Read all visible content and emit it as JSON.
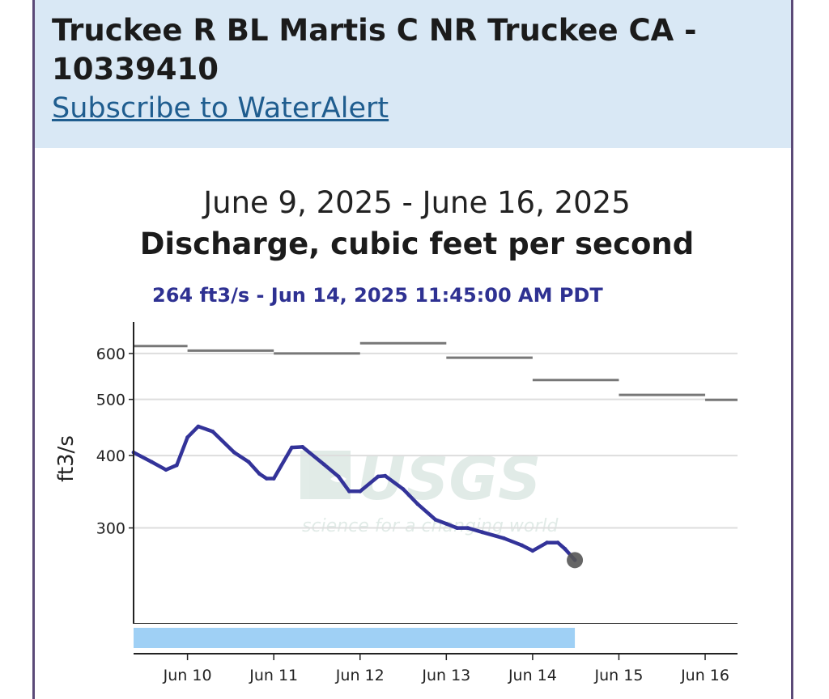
{
  "header": {
    "site_title": "Truckee R BL Martis C NR Truckee CA - 10339410",
    "subscribe_link": "Subscribe to WaterAlert"
  },
  "watermark": {
    "logo": "USGS",
    "tagline": "science for a changing world"
  },
  "colors": {
    "header_bg": "#d9e8f5",
    "series": "#333399",
    "median": "#777777",
    "brush": "#9fd0f5",
    "tooltip": "#2e3192",
    "link": "#1f5d8f"
  },
  "chart_data": {
    "type": "line",
    "date_range": "June 9, 2025 - June 16, 2025",
    "title": "Discharge, cubic feet per second",
    "tooltip": "264 ft3/s - Jun 14, 2025 11:45:00 AM PDT",
    "ylabel": "ft3/s",
    "yscale": "log",
    "ylim": [
      205,
      680
    ],
    "yticks": [
      300,
      400,
      500,
      600
    ],
    "xlim": [
      "2025-06-09T09:00",
      "2025-06-16T09:00"
    ],
    "xticks": [
      {
        "t": "2025-06-10T00:00",
        "label": "Jun 10"
      },
      {
        "t": "2025-06-11T00:00",
        "label": "Jun 11"
      },
      {
        "t": "2025-06-12T00:00",
        "label": "Jun 12"
      },
      {
        "t": "2025-06-13T00:00",
        "label": "Jun 13"
      },
      {
        "t": "2025-06-14T00:00",
        "label": "Jun 14"
      },
      {
        "t": "2025-06-15T00:00",
        "label": "Jun 15"
      },
      {
        "t": "2025-06-16T00:00",
        "label": "Jun 16"
      }
    ],
    "grid": "horizontal",
    "series": [
      {
        "kind": "discharge",
        "points": [
          [
            "2025-06-09T09:00",
            405
          ],
          [
            "2025-06-09T14:00",
            390
          ],
          [
            "2025-06-09T18:00",
            378
          ],
          [
            "2025-06-09T21:00",
            385
          ],
          [
            "2025-06-10T00:00",
            430
          ],
          [
            "2025-06-10T03:00",
            449
          ],
          [
            "2025-06-10T07:00",
            440
          ],
          [
            "2025-06-10T13:00",
            405
          ],
          [
            "2025-06-10T17:00",
            390
          ],
          [
            "2025-06-10T20:00",
            372
          ],
          [
            "2025-06-10T22:00",
            365
          ],
          [
            "2025-06-11T00:00",
            365
          ],
          [
            "2025-06-11T05:00",
            413
          ],
          [
            "2025-06-11T08:00",
            414
          ],
          [
            "2025-06-11T14:00",
            386
          ],
          [
            "2025-06-11T18:00",
            368
          ],
          [
            "2025-06-11T21:00",
            347
          ],
          [
            "2025-06-12T00:00",
            347
          ],
          [
            "2025-06-12T05:00",
            368
          ],
          [
            "2025-06-12T07:00",
            369
          ],
          [
            "2025-06-12T12:00",
            350
          ],
          [
            "2025-06-12T16:00",
            330
          ],
          [
            "2025-06-12T21:00",
            310
          ],
          [
            "2025-06-13T00:00",
            305
          ],
          [
            "2025-06-13T03:00",
            300
          ],
          [
            "2025-06-13T06:00",
            300
          ],
          [
            "2025-06-13T10:00",
            295
          ],
          [
            "2025-06-13T16:00",
            288
          ],
          [
            "2025-06-13T21:00",
            280
          ],
          [
            "2025-06-14T00:00",
            274
          ],
          [
            "2025-06-14T04:00",
            283
          ],
          [
            "2025-06-14T07:00",
            283
          ],
          [
            "2025-06-14T09:00",
            276
          ],
          [
            "2025-06-14T11:45",
            264
          ]
        ]
      },
      {
        "kind": "median",
        "steps": [
          {
            "from": "2025-06-09T09:00",
            "to": "2025-06-10T00:00",
            "value": 618
          },
          {
            "from": "2025-06-10T00:00",
            "to": "2025-06-11T00:00",
            "value": 607
          },
          {
            "from": "2025-06-11T00:00",
            "to": "2025-06-12T00:00",
            "value": 600
          },
          {
            "from": "2025-06-12T00:00",
            "to": "2025-06-13T00:00",
            "value": 625
          },
          {
            "from": "2025-06-13T00:00",
            "to": "2025-06-14T00:00",
            "value": 590
          },
          {
            "from": "2025-06-14T00:00",
            "to": "2025-06-15T00:00",
            "value": 540
          },
          {
            "from": "2025-06-15T00:00",
            "to": "2025-06-16T00:00",
            "value": 509
          },
          {
            "from": "2025-06-16T00:00",
            "to": "2025-06-16T09:00",
            "value": 499
          }
        ]
      }
    ],
    "current_point": {
      "t": "2025-06-14T11:45",
      "value": 264
    },
    "brush": {
      "from": "2025-06-09T09:00",
      "to": "2025-06-14T11:45"
    }
  }
}
